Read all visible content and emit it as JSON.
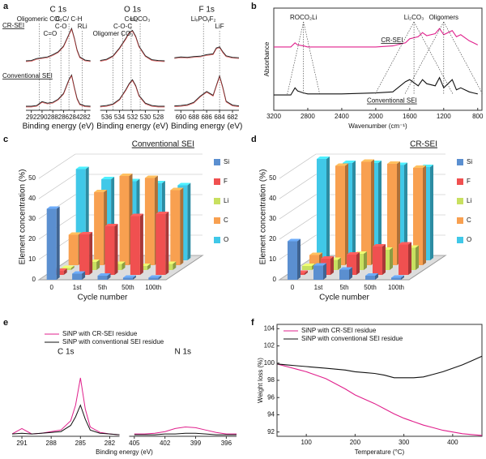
{
  "chart_data": [
    {
      "panel": "a",
      "type": "spectra",
      "stacked": true,
      "ylim": [
        0,
        100
      ],
      "series": [
        {
          "name": "CR-SEI",
          "color": "#222222"
        },
        {
          "name": "Conventional SEI",
          "color": "#222222"
        }
      ],
      "subplots": [
        {
          "title": "C 1s",
          "xlabel": "Binding energy (eV)",
          "xlim": [
            293,
            281
          ],
          "xticks": [
            292,
            290,
            288,
            286,
            284,
            282
          ],
          "x": [
            293,
            292,
            291,
            290,
            289,
            288,
            287,
            286,
            285,
            284.5,
            284,
            283.5,
            283,
            282,
            281
          ],
          "values": [
            [
              2,
              3,
              8,
              10,
              12,
              18,
              25,
              40,
              70,
              85,
              60,
              30,
              12,
              4,
              2
            ],
            [
              2,
              2,
              4,
              14,
              10,
              12,
              20,
              35,
              70,
              82,
              50,
              22,
              8,
              3,
              2
            ]
          ],
          "annotations": [
            {
              "text": "C-C/ C-H",
              "x": 285
            },
            {
              "text": "C-O",
              "x": 286.5
            },
            {
              "text": "C=O",
              "x": 288.5
            },
            {
              "text": "Oligomeric CO₃",
              "x": 290.5
            },
            {
              "text": "RLi",
              "x": 282.5
            }
          ]
        },
        {
          "title": "O 1s",
          "xlabel": "Binding energy (eV)",
          "xlim": [
            537,
            527
          ],
          "xticks": [
            536,
            534,
            532,
            530,
            528
          ],
          "x": [
            537,
            536,
            535,
            534,
            533,
            532.5,
            532,
            531.5,
            531,
            530,
            529,
            528,
            527
          ],
          "values": [
            [
              3,
              6,
              15,
              35,
              60,
              75,
              80,
              65,
              40,
              15,
              5,
              3,
              2
            ],
            [
              2,
              4,
              8,
              20,
              45,
              60,
              70,
              55,
              30,
              10,
              4,
              2,
              2
            ]
          ],
          "annotations": [
            {
              "text": "C=O",
              "x": 532.2
            },
            {
              "text": "C-O-C",
              "x": 533.5
            },
            {
              "text": "Oligomer CO₃",
              "x": 535
            },
            {
              "text": "Li₂CO₃",
              "x": 530.8
            }
          ]
        },
        {
          "title": "F 1s",
          "xlabel": "Binding energy (eV)",
          "xlim": [
            691,
            681
          ],
          "xticks": [
            690,
            688,
            686,
            684,
            682
          ],
          "x": [
            691,
            690,
            689,
            688,
            687,
            686,
            685,
            684.5,
            684,
            683.5,
            683,
            682,
            681
          ],
          "values": [
            [
              10,
              12,
              11,
              13,
              14,
              18,
              20,
              35,
              38,
              25,
              15,
              11,
              10
            ],
            [
              3,
              4,
              6,
              12,
              28,
              40,
              30,
              55,
              80,
              50,
              15,
              5,
              3
            ]
          ],
          "annotations": [
            {
              "text": "LiₓPOᵧF₂",
              "x": 686.5
            },
            {
              "text": "LiF",
              "x": 684
            }
          ]
        }
      ]
    },
    {
      "panel": "b",
      "type": "line",
      "legend": "inline",
      "ylabel": "Absorbance",
      "xlabel": "Wavenumber (cm⁻¹)",
      "xlim": [
        3200,
        750
      ],
      "xticks": [
        3200,
        2800,
        2400,
        2000,
        1600,
        1200,
        800
      ],
      "ylim": [
        0,
        100
      ],
      "x": [
        3200,
        3000,
        2950,
        2920,
        2850,
        2800,
        2600,
        2400,
        2000,
        1800,
        1650,
        1600,
        1500,
        1450,
        1400,
        1300,
        1250,
        1200,
        1100,
        1050,
        1000,
        900,
        850,
        800
      ],
      "series": [
        {
          "name": "CR-SEI",
          "color": "#e0208c",
          "values": [
            62,
            62,
            66,
            64,
            63,
            62,
            62,
            62,
            62,
            63,
            66,
            70,
            72,
            76,
            73,
            75,
            80,
            74,
            78,
            72,
            74,
            68,
            66,
            64
          ]
        },
        {
          "name": "Conventional SEI",
          "color": "#111111",
          "values": [
            15,
            15,
            22,
            19,
            17,
            16,
            16,
            16,
            17,
            18,
            28,
            30,
            24,
            30,
            26,
            24,
            32,
            22,
            30,
            20,
            22,
            18,
            17,
            16
          ]
        }
      ],
      "annotations": [
        {
          "text": "ROCO₂Li",
          "x": 2850
        },
        {
          "text": "Li₂CO₃",
          "x": 1550
        },
        {
          "text": "Oligomers",
          "x": 1200
        }
      ]
    },
    {
      "panel": "c",
      "type": "bar3d",
      "title": "Conventional SEI",
      "ylabel": "Element concentration (%)",
      "xlabel": "Cycle number",
      "categories": [
        "0",
        "1st",
        "5th",
        "50th",
        "100th"
      ],
      "ylim": [
        0,
        50
      ],
      "yticks": [
        0,
        10,
        20,
        30,
        40,
        50
      ],
      "series": [
        {
          "name": "Si",
          "color": "#5b8fd0",
          "values": [
            35,
            3,
            2,
            1,
            1
          ]
        },
        {
          "name": "F",
          "color": "#f05050",
          "values": [
            2,
            20,
            24,
            29,
            30
          ]
        },
        {
          "name": "Li",
          "color": "#c8e060",
          "values": [
            1,
            4,
            3,
            2,
            3
          ]
        },
        {
          "name": "C",
          "color": "#f8a050",
          "values": [
            15,
            36,
            44,
            43,
            37
          ]
        },
        {
          "name": "O",
          "color": "#40c8e8",
          "values": [
            45,
            40,
            39,
            38,
            37
          ]
        }
      ]
    },
    {
      "panel": "d",
      "type": "bar3d",
      "title": "CR-SEI",
      "ylabel": "Element concentration (%)",
      "xlabel": "Cycle number",
      "categories": [
        "0",
        "1st",
        "5th",
        "50th",
        "100th"
      ],
      "ylim": [
        0,
        50
      ],
      "yticks": [
        0,
        10,
        20,
        30,
        40,
        50
      ],
      "series": [
        {
          "name": "Si",
          "color": "#5b8fd0",
          "values": [
            19,
            7,
            5,
            2,
            1
          ]
        },
        {
          "name": "F",
          "color": "#f05050",
          "values": [
            1,
            8,
            10,
            14,
            15
          ]
        },
        {
          "name": "Li",
          "color": "#c8e060",
          "values": [
            2,
            5,
            8,
            10,
            11
          ]
        },
        {
          "name": "C",
          "color": "#f8a050",
          "values": [
            5,
            49,
            51,
            50,
            48
          ]
        },
        {
          "name": "O",
          "color": "#40c8e8",
          "values": [
            50,
            48,
            48,
            47,
            46
          ]
        }
      ]
    },
    {
      "panel": "e",
      "type": "spectra",
      "stacked": false,
      "legend": "top",
      "ylim": [
        0,
        100
      ],
      "xlabel": "Binding energy (eV)",
      "series": [
        {
          "name": "SiNP with CR-SEI residue",
          "color": "#e0208c"
        },
        {
          "name": "SiNP with conventional SEI residue",
          "color": "#111111"
        }
      ],
      "subplots": [
        {
          "title": "C 1s",
          "xlim": [
            292,
            281
          ],
          "xticks": [
            291,
            288,
            285,
            282
          ],
          "x": [
            292,
            291,
            290,
            289,
            288,
            287,
            286,
            285.5,
            285,
            284.5,
            284,
            283,
            282,
            281
          ],
          "values": [
            [
              3,
              10,
              3,
              4,
              6,
              8,
              20,
              40,
              75,
              35,
              12,
              5,
              3,
              2
            ],
            [
              3,
              4,
              3,
              4,
              5,
              6,
              14,
              25,
              40,
              22,
              8,
              4,
              3,
              2
            ]
          ]
        },
        {
          "title": "N 1s",
          "xlim": [
            405.5,
            395
          ],
          "xticks": [
            405,
            402,
            399,
            396
          ],
          "x": [
            405,
            404,
            403,
            402,
            401,
            400,
            399,
            398,
            397,
            396,
            395
          ],
          "values": [
            [
              3,
              3,
              4,
              6,
              10,
              12,
              11,
              8,
              5,
              3,
              3
            ],
            [
              2,
              2,
              2,
              3,
              3,
              4,
              4,
              3,
              2,
              2,
              2
            ]
          ]
        }
      ]
    },
    {
      "panel": "f",
      "type": "line",
      "legend": "upper left",
      "ylabel": "Weight loss (%)",
      "xlabel": "Temperature (°C)",
      "xlim": [
        40,
        460
      ],
      "xticks": [
        100,
        200,
        300,
        400
      ],
      "ylim": [
        91.5,
        104.5
      ],
      "yticks": [
        92,
        94,
        96,
        98,
        100,
        102,
        104
      ],
      "x": [
        40,
        60,
        80,
        100,
        120,
        140,
        160,
        180,
        200,
        220,
        240,
        260,
        280,
        300,
        320,
        340,
        360,
        380,
        400,
        420,
        440,
        460
      ],
      "series": [
        {
          "name": "SiNP with CR-SEI residue",
          "color": "#e0208c",
          "values": [
            99.9,
            99.6,
            99.3,
            99.0,
            98.6,
            98.2,
            97.6,
            97.0,
            96.3,
            95.8,
            95.3,
            94.7,
            94.1,
            93.6,
            93.2,
            92.8,
            92.5,
            92.2,
            92.0,
            91.8,
            91.7,
            91.6
          ]
        },
        {
          "name": "SiNP with conventional SEI residue",
          "color": "#111111",
          "values": [
            99.9,
            99.8,
            99.7,
            99.6,
            99.5,
            99.4,
            99.3,
            99.2,
            99.0,
            98.9,
            98.8,
            98.6,
            98.3,
            98.3,
            98.3,
            98.4,
            98.7,
            99.0,
            99.4,
            99.8,
            100.3,
            100.8
          ]
        }
      ]
    }
  ]
}
